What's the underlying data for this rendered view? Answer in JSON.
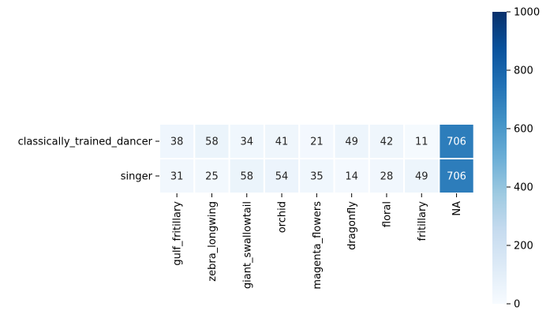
{
  "chart_data": {
    "type": "heatmap",
    "rows": [
      "classically_trained_dancer",
      "singer"
    ],
    "columns": [
      "gulf_fritillary",
      "zebra_longwing",
      "giant_swallowtail",
      "orchid",
      "magenta_flowers",
      "dragonfly",
      "floral",
      "fritillary",
      "NA"
    ],
    "values": [
      [
        38,
        58,
        34,
        41,
        21,
        49,
        42,
        11,
        706
      ],
      [
        31,
        25,
        58,
        54,
        35,
        14,
        28,
        49,
        706
      ]
    ],
    "colorbar": {
      "min": 0,
      "max": 1000,
      "ticks": [
        0,
        200,
        400,
        600,
        800,
        1000
      ],
      "colormap": "Blues",
      "position": "right"
    },
    "annotated": true,
    "grid": false
  }
}
